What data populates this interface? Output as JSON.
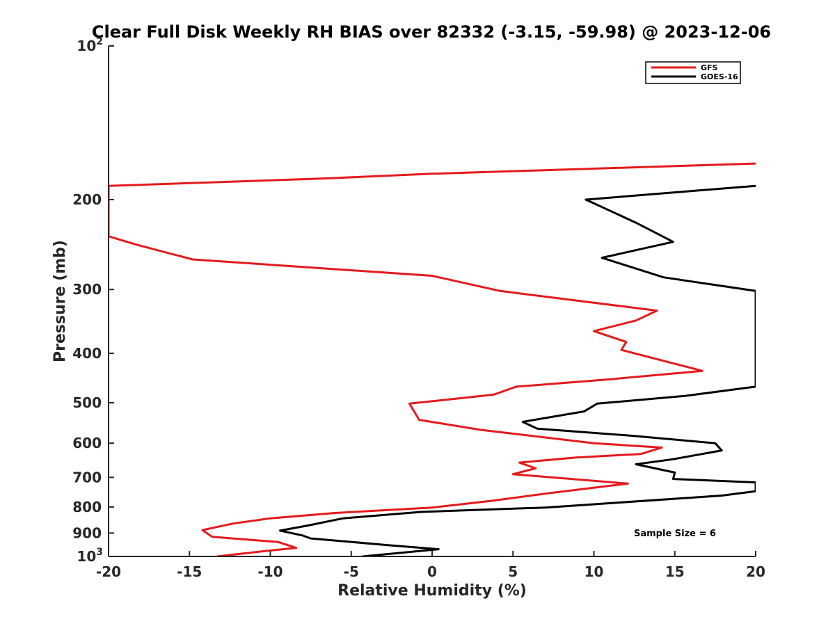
{
  "chart_data": {
    "type": "line",
    "title": "Clear Full Disk Weekly RH BIAS over 82332 (-3.15, -59.98) @ 2023-12-06",
    "xlabel": "Relative Humidity (%)",
    "ylabel": "Pressure (mb)",
    "xlim": [
      -20,
      20
    ],
    "ylim": [
      100,
      1000
    ],
    "yscale": "log",
    "y_reversed": true,
    "grid": false,
    "legend_position": "top-right",
    "x_ticks": [
      -20,
      -15,
      -10,
      -5,
      0,
      5,
      10,
      15,
      20
    ],
    "y_ticks": [
      {
        "value": 100,
        "base": "10",
        "exp": "2"
      },
      {
        "value": 200,
        "label": "200"
      },
      {
        "value": 300,
        "label": "300"
      },
      {
        "value": 400,
        "label": "400"
      },
      {
        "value": 500,
        "label": "500"
      },
      {
        "value": 600,
        "label": "600"
      },
      {
        "value": 700,
        "label": "700"
      },
      {
        "value": 800,
        "label": "800"
      },
      {
        "value": 900,
        "label": "900"
      },
      {
        "value": 1000,
        "base": "10",
        "exp": "3"
      }
    ],
    "annotation": "Sample Size = 6",
    "series": [
      {
        "name": "GFS",
        "color": "#e41a1c",
        "points": [
          [
            20,
            170
          ],
          [
            0,
            178
          ],
          [
            -7,
            182
          ],
          [
            -20,
            188
          ],
          [
            -20,
            236
          ],
          [
            -18.3,
            245
          ],
          [
            -14.8,
            262
          ],
          [
            0,
            282
          ],
          [
            4.2,
            302
          ],
          [
            13.9,
            330
          ],
          [
            12.6,
            345
          ],
          [
            10,
            362
          ],
          [
            12,
            380
          ],
          [
            11.7,
            394
          ],
          [
            16.7,
            433
          ],
          [
            10.9,
            450
          ],
          [
            5.2,
            465
          ],
          [
            3.8,
            482
          ],
          [
            -1.4,
            502
          ],
          [
            -0.8,
            540
          ],
          [
            3,
            565
          ],
          [
            10,
            600
          ],
          [
            14.2,
            612
          ],
          [
            12.9,
            630
          ],
          [
            8.9,
            640
          ],
          [
            5.4,
            655
          ],
          [
            6.4,
            672
          ],
          [
            5,
            690
          ],
          [
            12.1,
            720
          ],
          [
            7.2,
            752
          ],
          [
            3.7,
            778
          ],
          [
            0,
            802
          ],
          [
            -6,
            822
          ],
          [
            -10,
            842
          ],
          [
            -12.3,
            862
          ],
          [
            -14.2,
            888
          ],
          [
            -13.6,
            915
          ],
          [
            -9.5,
            937
          ],
          [
            -8.4,
            962
          ],
          [
            -10.2,
            975
          ],
          [
            -13.3,
            1000
          ]
        ]
      },
      {
        "name": "GOES-16",
        "color": "#000000",
        "points": [
          [
            20,
            188
          ],
          [
            9.5,
            200
          ],
          [
            12.6,
            222
          ],
          [
            14.9,
            242
          ],
          [
            10.5,
            260
          ],
          [
            14.3,
            284
          ],
          [
            20,
            302
          ],
          [
            20,
            465
          ],
          [
            15.6,
            485
          ],
          [
            10.2,
            502
          ],
          [
            9.4,
            520
          ],
          [
            5.6,
            545
          ],
          [
            6.5,
            562
          ],
          [
            12.3,
            580
          ],
          [
            17.5,
            600
          ],
          [
            17.9,
            620
          ],
          [
            14.9,
            645
          ],
          [
            12.6,
            660
          ],
          [
            15,
            685
          ],
          [
            14.9,
            705
          ],
          [
            20,
            716
          ],
          [
            20,
            745
          ],
          [
            17.9,
            760
          ],
          [
            7,
            802
          ],
          [
            -0.7,
            818
          ],
          [
            -5.5,
            842
          ],
          [
            -7.7,
            870
          ],
          [
            -9.4,
            890
          ],
          [
            -8,
            910
          ],
          [
            -7.5,
            922
          ],
          [
            -2.8,
            950
          ],
          [
            0.4,
            968
          ],
          [
            -4.3,
            1000
          ]
        ]
      }
    ]
  }
}
